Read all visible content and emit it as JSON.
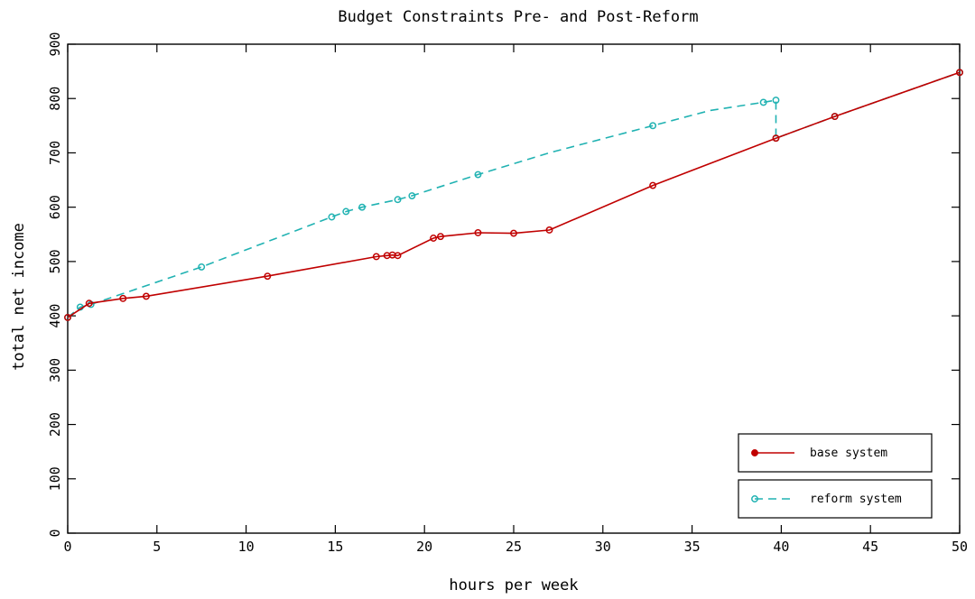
{
  "chart_data": {
    "type": "line",
    "title": "Budget Constraints Pre- and Post-Reform",
    "xlabel": "hours per week",
    "ylabel": "total net income",
    "xlim": [
      0,
      50
    ],
    "ylim": [
      0,
      900
    ],
    "xticks": [
      0,
      5,
      10,
      15,
      20,
      25,
      30,
      35,
      40,
      45,
      50
    ],
    "yticks": [
      0,
      100,
      200,
      300,
      400,
      500,
      600,
      700,
      800,
      900
    ],
    "grid": false,
    "legend_position": "bottom-right",
    "series": [
      {
        "name": "base system",
        "color": "#c00000",
        "line_style": "solid",
        "marker_points": [
          [
            0,
            397
          ],
          [
            1.2,
            423
          ],
          [
            3.1,
            432
          ],
          [
            4.4,
            436
          ],
          [
            11.2,
            473
          ],
          [
            17.3,
            509
          ],
          [
            17.9,
            511
          ],
          [
            18.2,
            512
          ],
          [
            18.5,
            511
          ],
          [
            20.5,
            543
          ],
          [
            20.9,
            546
          ],
          [
            23.0,
            553
          ],
          [
            25.0,
            552
          ],
          [
            27.0,
            558
          ],
          [
            32.8,
            640
          ],
          [
            39.7,
            727
          ],
          [
            43.0,
            767
          ],
          [
            50.0,
            848
          ]
        ],
        "line_points": [
          [
            0,
            397
          ],
          [
            1.2,
            423
          ],
          [
            3.1,
            432
          ],
          [
            4.4,
            436
          ],
          [
            11.2,
            473
          ],
          [
            17.3,
            509
          ],
          [
            17.9,
            511
          ],
          [
            18.2,
            512
          ],
          [
            18.5,
            511
          ],
          [
            20.5,
            543
          ],
          [
            20.9,
            546
          ],
          [
            23.0,
            553
          ],
          [
            25.0,
            552
          ],
          [
            27.0,
            558
          ],
          [
            32.8,
            640
          ],
          [
            39.7,
            727
          ],
          [
            43.0,
            767
          ],
          [
            50.0,
            848
          ]
        ]
      },
      {
        "name": "reform system",
        "color": "#20b2b2",
        "line_style": "dashed",
        "marker_points": [
          [
            0,
            397
          ],
          [
            0.7,
            416
          ],
          [
            1.3,
            421
          ],
          [
            7.5,
            490
          ],
          [
            14.8,
            582
          ],
          [
            15.6,
            592
          ],
          [
            16.5,
            600
          ],
          [
            18.5,
            614
          ],
          [
            19.3,
            621
          ],
          [
            23.0,
            660
          ],
          [
            32.8,
            750
          ],
          [
            39.0,
            793
          ],
          [
            39.7,
            797
          ],
          [
            39.7,
            727
          ],
          [
            43.0,
            767
          ],
          [
            50.0,
            848
          ]
        ],
        "line_points": [
          [
            0,
            397
          ],
          [
            0.7,
            416
          ],
          [
            1.3,
            421
          ],
          [
            7.5,
            490
          ],
          [
            14.8,
            582
          ],
          [
            15.6,
            592
          ],
          [
            16.5,
            600
          ],
          [
            18.5,
            614
          ],
          [
            19.3,
            621
          ],
          [
            23.0,
            660
          ],
          [
            27.0,
            700
          ],
          [
            32.8,
            750
          ],
          [
            36.0,
            778
          ],
          [
            39.0,
            793
          ],
          [
            39.7,
            797
          ],
          [
            39.7,
            727
          ],
          [
            43.0,
            767
          ],
          [
            50.0,
            848
          ]
        ]
      }
    ]
  }
}
